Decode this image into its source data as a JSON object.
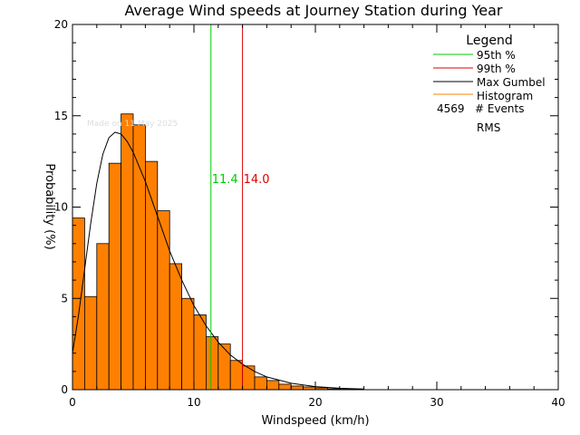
{
  "chart_data": {
    "type": "bar",
    "title": "Average Wind speeds at Journey Station during Year",
    "xlabel": "Windspeed (km/h)",
    "ylabel": "Probability (%)",
    "xlim": [
      0,
      40
    ],
    "ylim": [
      0,
      20
    ],
    "xticks": [
      0,
      10,
      20,
      30,
      40
    ],
    "yticks": [
      0,
      5,
      10,
      15,
      20
    ],
    "grid": false,
    "bin_width": 1,
    "bin_starts": [
      0,
      1,
      2,
      3,
      4,
      5,
      6,
      7,
      8,
      9,
      10,
      11,
      12,
      13,
      14,
      15,
      16,
      17,
      18,
      19,
      20,
      21,
      22,
      23
    ],
    "values": [
      9.4,
      5.1,
      8.0,
      12.4,
      15.1,
      14.5,
      12.5,
      9.8,
      6.9,
      5.0,
      4.1,
      2.9,
      2.5,
      1.6,
      1.3,
      0.7,
      0.5,
      0.3,
      0.2,
      0.15,
      0.1,
      0.05,
      0.05,
      0.03
    ],
    "gumbel_curve": {
      "name": "Max Gumbel",
      "x": [
        0,
        0.5,
        1,
        1.5,
        2,
        2.5,
        3,
        3.5,
        4,
        4.5,
        5,
        6,
        7,
        8,
        9,
        10,
        11,
        12,
        13,
        14,
        15,
        16,
        18,
        20,
        22,
        24
      ],
      "y": [
        2.0,
        4.1,
        6.6,
        9.1,
        11.3,
        12.9,
        13.8,
        14.1,
        14.0,
        13.6,
        13.0,
        11.4,
        9.5,
        7.6,
        6.0,
        4.6,
        3.5,
        2.6,
        1.9,
        1.4,
        1.0,
        0.7,
        0.35,
        0.17,
        0.08,
        0.04
      ]
    },
    "series": [
      {
        "name": "95th %",
        "color": "#00cc00",
        "value": 11.4,
        "label": "11.4"
      },
      {
        "name": "99th %",
        "color": "#dd0000",
        "value": 14.0,
        "label": "14.0"
      },
      {
        "name": "Max Gumbel",
        "color": "#000000"
      },
      {
        "name": "Histogram",
        "color": "#ff8000"
      }
    ],
    "legend": {
      "title": "Legend",
      "position": "top-right",
      "events_count": "4569",
      "events_label": "# Events",
      "rms_label": "RMS"
    },
    "watermark": "Made on 11 May 2025",
    "colors": {
      "bar_fill": "#ff8000",
      "bar_stroke": "#000000",
      "axis": "#000000",
      "p95": "#00cc00",
      "p99": "#dd0000"
    }
  }
}
